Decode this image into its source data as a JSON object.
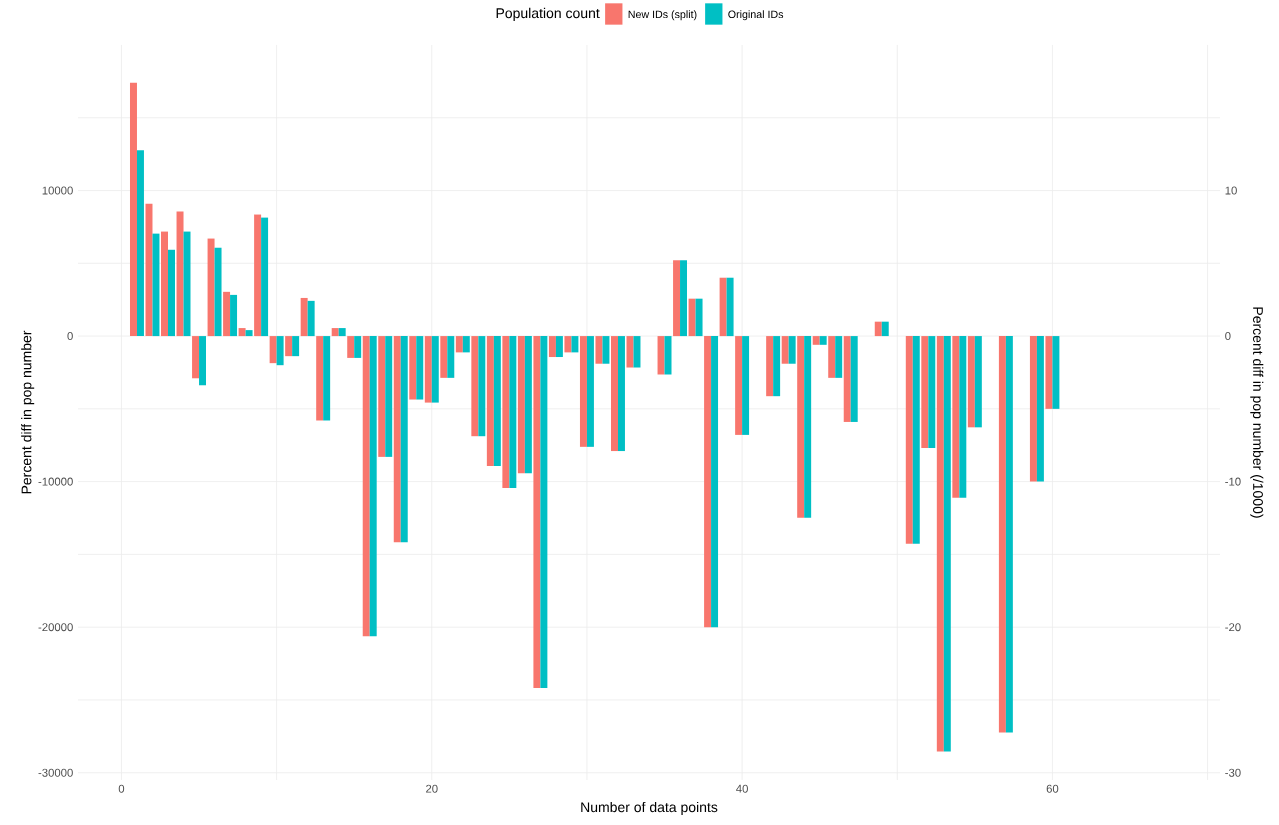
{
  "chart_data": {
    "type": "bar",
    "xlabel": "Number of data points",
    "ylabel": "Percent diff in pop number",
    "y2label": "Percent diff in pop number (/1000)",
    "legend_title": "Population count",
    "x": [
      1,
      2,
      3,
      4,
      5,
      6,
      7,
      8,
      9,
      10,
      11,
      12,
      13,
      14,
      15,
      16,
      17,
      18,
      19,
      20,
      21,
      22,
      23,
      24,
      25,
      26,
      27,
      28,
      29,
      30,
      31,
      32,
      33,
      34,
      35,
      36,
      37,
      38,
      39,
      40,
      41,
      42,
      43,
      44,
      45,
      46,
      47,
      48,
      49,
      50,
      51,
      52,
      53,
      54,
      55,
      56,
      57,
      58,
      59,
      60
    ],
    "series": [
      {
        "name": "New IDs (split)",
        "color": "#f8766d",
        "values": [
          17400,
          9100,
          7180,
          8560,
          -2900,
          6700,
          3040,
          550,
          8350,
          -1860,
          -1380,
          2620,
          -5800,
          550,
          -1500,
          -20630,
          -8300,
          -14160,
          -4360,
          -4570,
          -2870,
          -1120,
          -6880,
          -8920,
          -10440,
          -9420,
          -24180,
          -1440,
          -1120,
          -7610,
          -1900,
          -7900,
          -2160,
          null,
          -2640,
          5210,
          2570,
          -20000,
          4010,
          -6790,
          null,
          -4130,
          -1900,
          -12480,
          -600,
          -2870,
          -5900,
          null,
          990,
          null,
          -14270,
          -7690,
          -28540,
          -11110,
          -6270,
          null,
          -27230,
          null,
          -10000,
          -5000
        ]
      },
      {
        "name": "Original IDs",
        "color": "#00bfc4",
        "values": [
          12770,
          7040,
          5930,
          7180,
          -3380,
          6070,
          2830,
          410,
          8140,
          -2000,
          -1380,
          2420,
          -5800,
          550,
          -1500,
          -20630,
          -8300,
          -14160,
          -4360,
          -4570,
          -2870,
          -1120,
          -6880,
          -8920,
          -10440,
          -9420,
          -24180,
          -1440,
          -1120,
          -7610,
          -1900,
          -7900,
          -2160,
          null,
          -2640,
          5210,
          2570,
          -20000,
          4010,
          -6790,
          null,
          -4130,
          -1900,
          -12480,
          -600,
          -2870,
          -5900,
          null,
          990,
          null,
          -14270,
          -7690,
          -28540,
          -11110,
          -6270,
          null,
          -27230,
          null,
          -10000,
          -5000
        ]
      }
    ],
    "xlim": [
      -2.8,
      70.8
    ],
    "xticks": [
      0,
      {
        "value": 10,
        "label": null
      },
      20,
      {
        "value": 30,
        "label": null
      },
      40,
      {
        "value": 50,
        "label": null
      },
      60,
      {
        "value": 70,
        "label": null
      }
    ],
    "ylim": [
      -30500,
      20000
    ],
    "yticks": [
      -30000,
      {
        "value": -25000,
        "label": null
      },
      -20000,
      {
        "value": -15000,
        "label": null
      },
      -10000,
      {
        "value": -5000,
        "label": null
      },
      0,
      {
        "value": 5000,
        "label": null
      },
      10000,
      {
        "value": 15000,
        "label": null
      }
    ],
    "y2lim": [
      -30.5,
      20
    ],
    "y2ticks": [
      -30,
      -20,
      -10,
      0,
      10
    ],
    "grid": true,
    "legend": "top"
  }
}
